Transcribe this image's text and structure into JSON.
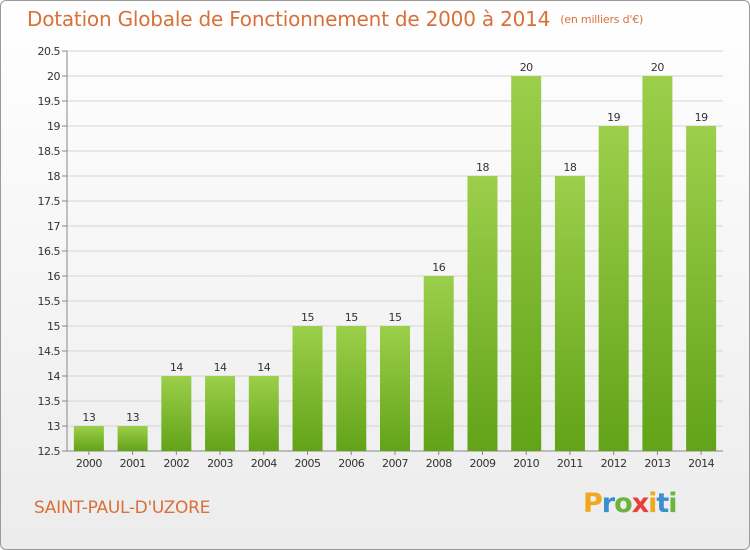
{
  "header": {
    "title": "Dotation Globale de Fonctionnement de 2000 à 2014",
    "unit": "(en milliers d'€)"
  },
  "footer": {
    "commune": "SAINT-PAUL-D'UZORE",
    "logo": {
      "letters": [
        "P",
        "r",
        "o",
        "x",
        "i",
        "t",
        "i"
      ],
      "colors": [
        "#f0a81c",
        "#3b8fd0",
        "#6cb33f",
        "#e8403a",
        "#f0a81c",
        "#3b8fd0",
        "#6cb33f"
      ]
    }
  },
  "chart_data": {
    "type": "bar",
    "categories": [
      "2000",
      "2001",
      "2002",
      "2003",
      "2004",
      "2005",
      "2006",
      "2007",
      "2008",
      "2009",
      "2010",
      "2011",
      "2012",
      "2013",
      "2014"
    ],
    "values": [
      13,
      13,
      14,
      14,
      14,
      15,
      15,
      15,
      16,
      18,
      20,
      18,
      19,
      20,
      19
    ],
    "data_labels": [
      "13",
      "13",
      "14",
      "14",
      "14",
      "15",
      "15",
      "15",
      "16",
      "18",
      "20",
      "18",
      "19",
      "20",
      "19"
    ],
    "ylim": [
      12.5,
      20.5
    ],
    "yticks": [
      12.5,
      13,
      13.5,
      14,
      14.5,
      15,
      15.5,
      16,
      16.5,
      17,
      17.5,
      18,
      18.5,
      19,
      19.5,
      20,
      20.5
    ],
    "grid": true,
    "legend": "none",
    "colors": {
      "bar_top": "#9ccf4b",
      "bar_bottom": "#62a318",
      "accent": "#d8703a"
    }
  }
}
